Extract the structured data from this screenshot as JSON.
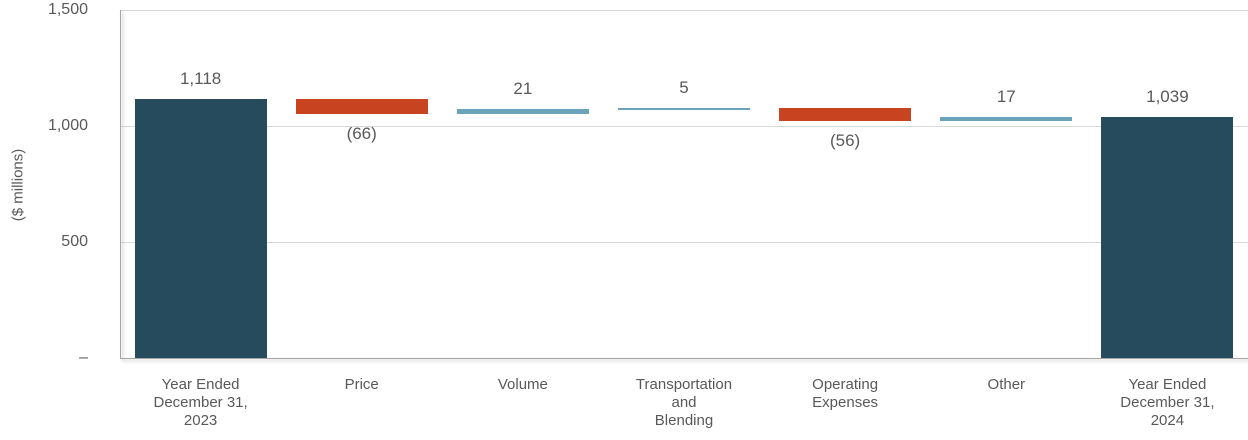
{
  "chart_data": {
    "type": "bar",
    "subtype": "waterfall",
    "title": "",
    "y_axis_title": "($ millions)",
    "xlabel": "",
    "ylabel": "($ millions)",
    "ylim": [
      0,
      1500
    ],
    "grid": true,
    "legend": "none",
    "categories": [
      [
        "Year Ended",
        "December 31,",
        "2023"
      ],
      [
        "Price"
      ],
      [
        "Volume"
      ],
      [
        "Transportation",
        "and",
        "Blending"
      ],
      [
        "Operating",
        "Expenses"
      ],
      [
        "Other"
      ],
      [
        "Year Ended",
        "December 31,",
        "2024"
      ]
    ],
    "values": [
      1118,
      -66,
      21,
      5,
      -56,
      17,
      1039
    ],
    "value_labels": [
      "1,118",
      "(66)",
      "21",
      "5",
      "(56)",
      "17",
      "1,039"
    ],
    "bar_kinds": [
      "total",
      "decrease",
      "increase",
      "increase",
      "decrease",
      "increase",
      "total"
    ],
    "running_totals": [
      1118,
      1052,
      1073,
      1078,
      1022,
      1039,
      1039
    ],
    "y_ticks": [
      {
        "label": "1,500",
        "value": 1500
      },
      {
        "label": "1,000",
        "value": 1000
      },
      {
        "label": "500",
        "value": 500
      },
      {
        "label": "–",
        "value": 0
      }
    ],
    "colors": {
      "total": "#254b5c",
      "increase": "#6ba4ba",
      "decrease": "#c8431f",
      "text": "#595959",
      "gridline": "#d9d9d9",
      "axis": "#a6a6a6"
    }
  }
}
